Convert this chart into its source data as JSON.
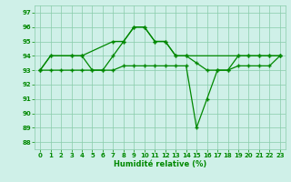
{
  "xlabel": "Humidité relative (%)",
  "bg_color": "#cff0e8",
  "grid_color": "#88ccaa",
  "line_color": "#008800",
  "xlim": [
    -0.5,
    23.5
  ],
  "ylim": [
    87.5,
    97.5
  ],
  "yticks": [
    88,
    89,
    90,
    91,
    92,
    93,
    94,
    95,
    96,
    97
  ],
  "xticks": [
    0,
    1,
    2,
    3,
    4,
    5,
    6,
    7,
    8,
    9,
    10,
    11,
    12,
    13,
    14,
    15,
    16,
    17,
    18,
    19,
    20,
    21,
    22,
    23
  ],
  "series1_x": [
    0,
    1,
    3,
    4,
    7,
    8,
    9,
    10,
    11,
    12,
    13,
    14,
    19,
    20,
    21,
    22,
    23
  ],
  "series1_y": [
    93,
    94,
    94,
    94,
    95,
    95,
    96,
    96,
    95,
    95,
    94,
    94,
    94,
    94,
    94,
    94,
    94
  ],
  "series2_x": [
    0,
    1,
    3,
    4,
    5,
    6,
    7,
    8,
    9,
    10,
    11,
    12,
    13,
    14,
    15,
    16,
    17,
    18,
    19,
    20,
    21,
    22,
    23
  ],
  "series2_y": [
    93,
    94,
    94,
    94,
    93,
    93,
    94,
    95,
    96,
    96,
    95,
    95,
    94,
    94,
    93.5,
    93,
    93,
    93,
    94,
    94,
    94,
    94,
    94
  ],
  "series3_x": [
    0,
    1,
    2,
    3,
    4,
    5,
    6,
    7,
    8,
    9,
    10,
    11,
    12,
    13,
    14,
    15,
    16,
    17,
    18,
    19,
    20,
    21,
    22,
    23
  ],
  "series3_y": [
    93,
    93,
    93,
    93,
    93,
    93,
    93,
    93,
    93.3,
    93.3,
    93.3,
    93.3,
    93.3,
    93.3,
    93.3,
    89,
    91,
    93,
    93,
    93.3,
    93.3,
    93.3,
    93.3,
    94
  ]
}
